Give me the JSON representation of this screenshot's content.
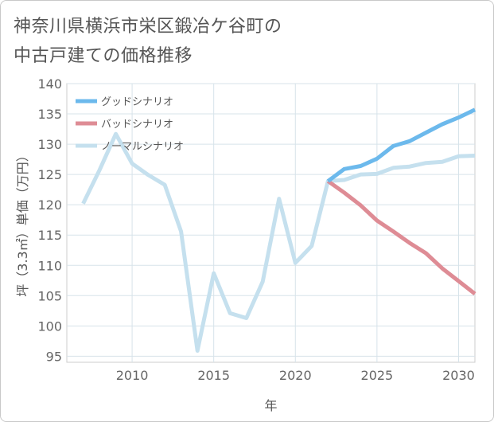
{
  "title_lines": [
    "神奈川県横浜市栄区鍛冶ケ谷町の",
    "中古戸建ての価格推移"
  ],
  "chart_data": {
    "type": "line",
    "xlabel": "年",
    "ylabel": "坪（3.3㎡）単価（万円）",
    "xlim": [
      2006,
      2031
    ],
    "ylim": [
      94,
      140
    ],
    "x_ticks": [
      2010,
      2015,
      2020,
      2025,
      2030
    ],
    "y_ticks": [
      95,
      100,
      105,
      110,
      115,
      120,
      125,
      130,
      135,
      140
    ],
    "grid": true,
    "legend_position": "top-left",
    "series": [
      {
        "name": "ノーマルシナリオ",
        "color": "#c5e0ee",
        "x": [
          2007,
          2008,
          2009,
          2010,
          2011,
          2012,
          2013,
          2014,
          2015,
          2016,
          2017,
          2018,
          2019,
          2020,
          2021,
          2022,
          2023,
          2024,
          2025,
          2026,
          2027,
          2028,
          2029,
          2030,
          2031
        ],
        "values": [
          120.2,
          125.7,
          131.7,
          126.8,
          124.9,
          123.3,
          115.6,
          95.9,
          108.7,
          102.1,
          101.3,
          107.3,
          121.0,
          110.4,
          113.2,
          123.9,
          124.1,
          125.0,
          125.1,
          126.1,
          126.3,
          126.9,
          127.1,
          128.0,
          128.1
        ]
      },
      {
        "name": "バッドシナリオ",
        "color": "#de8c95",
        "x": [
          2022,
          2023,
          2024,
          2025,
          2026,
          2027,
          2028,
          2029,
          2030,
          2031
        ],
        "values": [
          123.9,
          122.0,
          119.9,
          117.4,
          115.6,
          113.7,
          112.0,
          109.5,
          107.4,
          105.3
        ]
      },
      {
        "name": "グッドシナリオ",
        "color": "#6cb9ec",
        "x": [
          2022,
          2023,
          2024,
          2025,
          2026,
          2027,
          2028,
          2029,
          2030,
          2031
        ],
        "values": [
          123.9,
          125.9,
          126.4,
          127.6,
          129.7,
          130.5,
          131.9,
          133.3,
          134.4,
          135.7
        ]
      }
    ],
    "legend": [
      {
        "name": "グッドシナリオ",
        "color": "#6cb9ec"
      },
      {
        "name": "バッドシナリオ",
        "color": "#de8c95"
      },
      {
        "name": "ノーマルシナリオ",
        "color": "#c5e0ee"
      }
    ]
  }
}
